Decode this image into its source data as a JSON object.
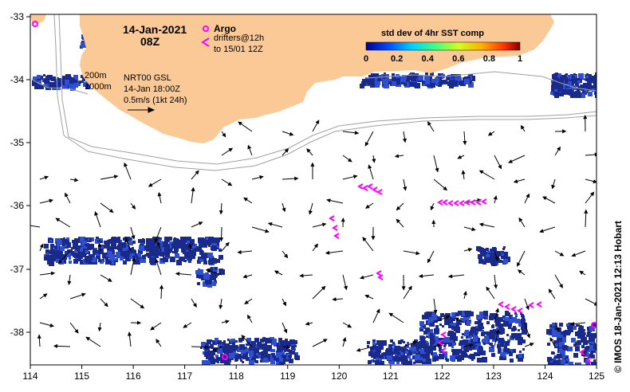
{
  "map": {
    "title_date": "14-Jan-2021",
    "title_time": "08Z",
    "legend_argo_label": "Argo",
    "legend_drifters_line1": "drifters@12h",
    "legend_drifters_line2": "to 15/01 12Z",
    "isobath_200": "200m",
    "isobath_1000": "1000m",
    "product": "NRT00 GSL",
    "product_time": "14-Jan 18:00Z",
    "scale_label": "0.5m/s (1kt 24h)",
    "colorbar_title": "std dev of 4hr SST comp",
    "colorbar_ticks": [
      "0",
      "0.2",
      "0.4",
      "0.6",
      "0.8",
      "1"
    ],
    "credit": "© IMOS 18-Jan-2021 12:13 Hobart",
    "lon_ticks": [
      "114",
      "115",
      "116",
      "117",
      "118",
      "119",
      "120",
      "121",
      "122",
      "123",
      "124",
      "125"
    ],
    "lat_ticks": [
      "-33",
      "-34",
      "-35",
      "-36",
      "-37",
      "-38"
    ],
    "colors": {
      "land": "#fbc996",
      "argo": "#ff00ff",
      "drifter": "#ff00ff",
      "sst_dark": "#1a2a8a",
      "sst_mid": "#2f4fd0",
      "isobath": "#a0a0a0"
    }
  }
}
